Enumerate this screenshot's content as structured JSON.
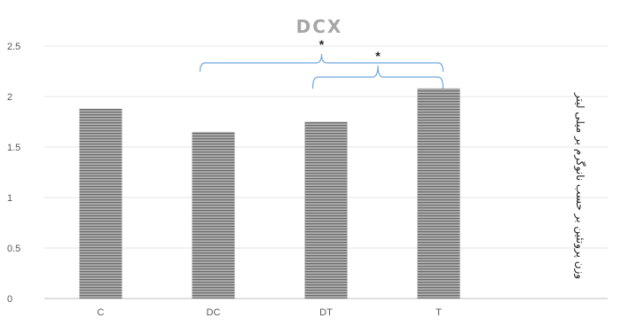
{
  "chart_data": {
    "type": "bar",
    "title": "DCX",
    "categories": [
      "C",
      "DC",
      "DT",
      "T"
    ],
    "values": [
      1.88,
      1.65,
      1.75,
      2.08
    ],
    "ylabel": "وزن پروتئین بر حسب نانوگرم بر میلی لیتر",
    "ylim": [
      0,
      2.5
    ],
    "yticks": [
      "0",
      "0.5",
      "1",
      "1.5",
      "2",
      "2.5"
    ],
    "grid": true,
    "legend": "none",
    "colors": {
      "bar": "#8c8c8c",
      "bracket": "#6fa8dc",
      "title": "#a6a6a6"
    },
    "annotations": [
      {
        "text": "*",
        "from": "DC",
        "to": "T"
      },
      {
        "text": "*",
        "from": "DT",
        "to": "T"
      }
    ]
  }
}
